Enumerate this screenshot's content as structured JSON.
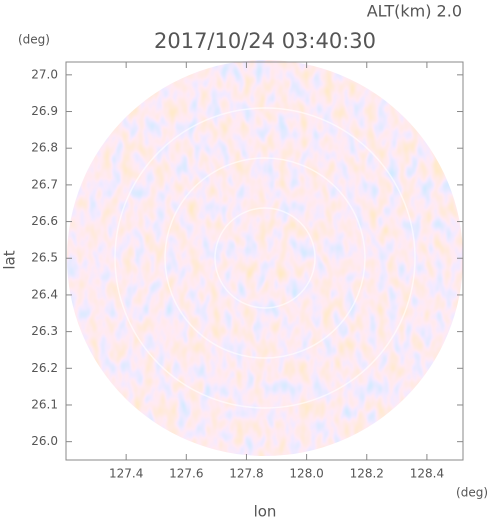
{
  "chart_data": {
    "type": "radar-image",
    "annotation": "ALT(km) 2.0",
    "title": "2017/10/24 03:40:30",
    "ylabel_unit": "(deg)",
    "xlabel_unit": "(deg)",
    "ylabel": "lat",
    "xlabel": "lon",
    "xlim": [
      127.2,
      128.52
    ],
    "ylim": [
      25.95,
      27.035
    ],
    "xticks": [
      127.4,
      127.6,
      127.8,
      {
        "value": 128,
        "label": "128.0"
      },
      128.2,
      128.4
    ],
    "yticks": [
      {
        "value": 26,
        "label": "26.0"
      },
      26.1,
      26.2,
      26.3,
      26.4,
      26.5,
      26.6,
      26.7,
      26.8,
      26.9,
      {
        "value": 27,
        "label": "27.0"
      }
    ]
  }
}
